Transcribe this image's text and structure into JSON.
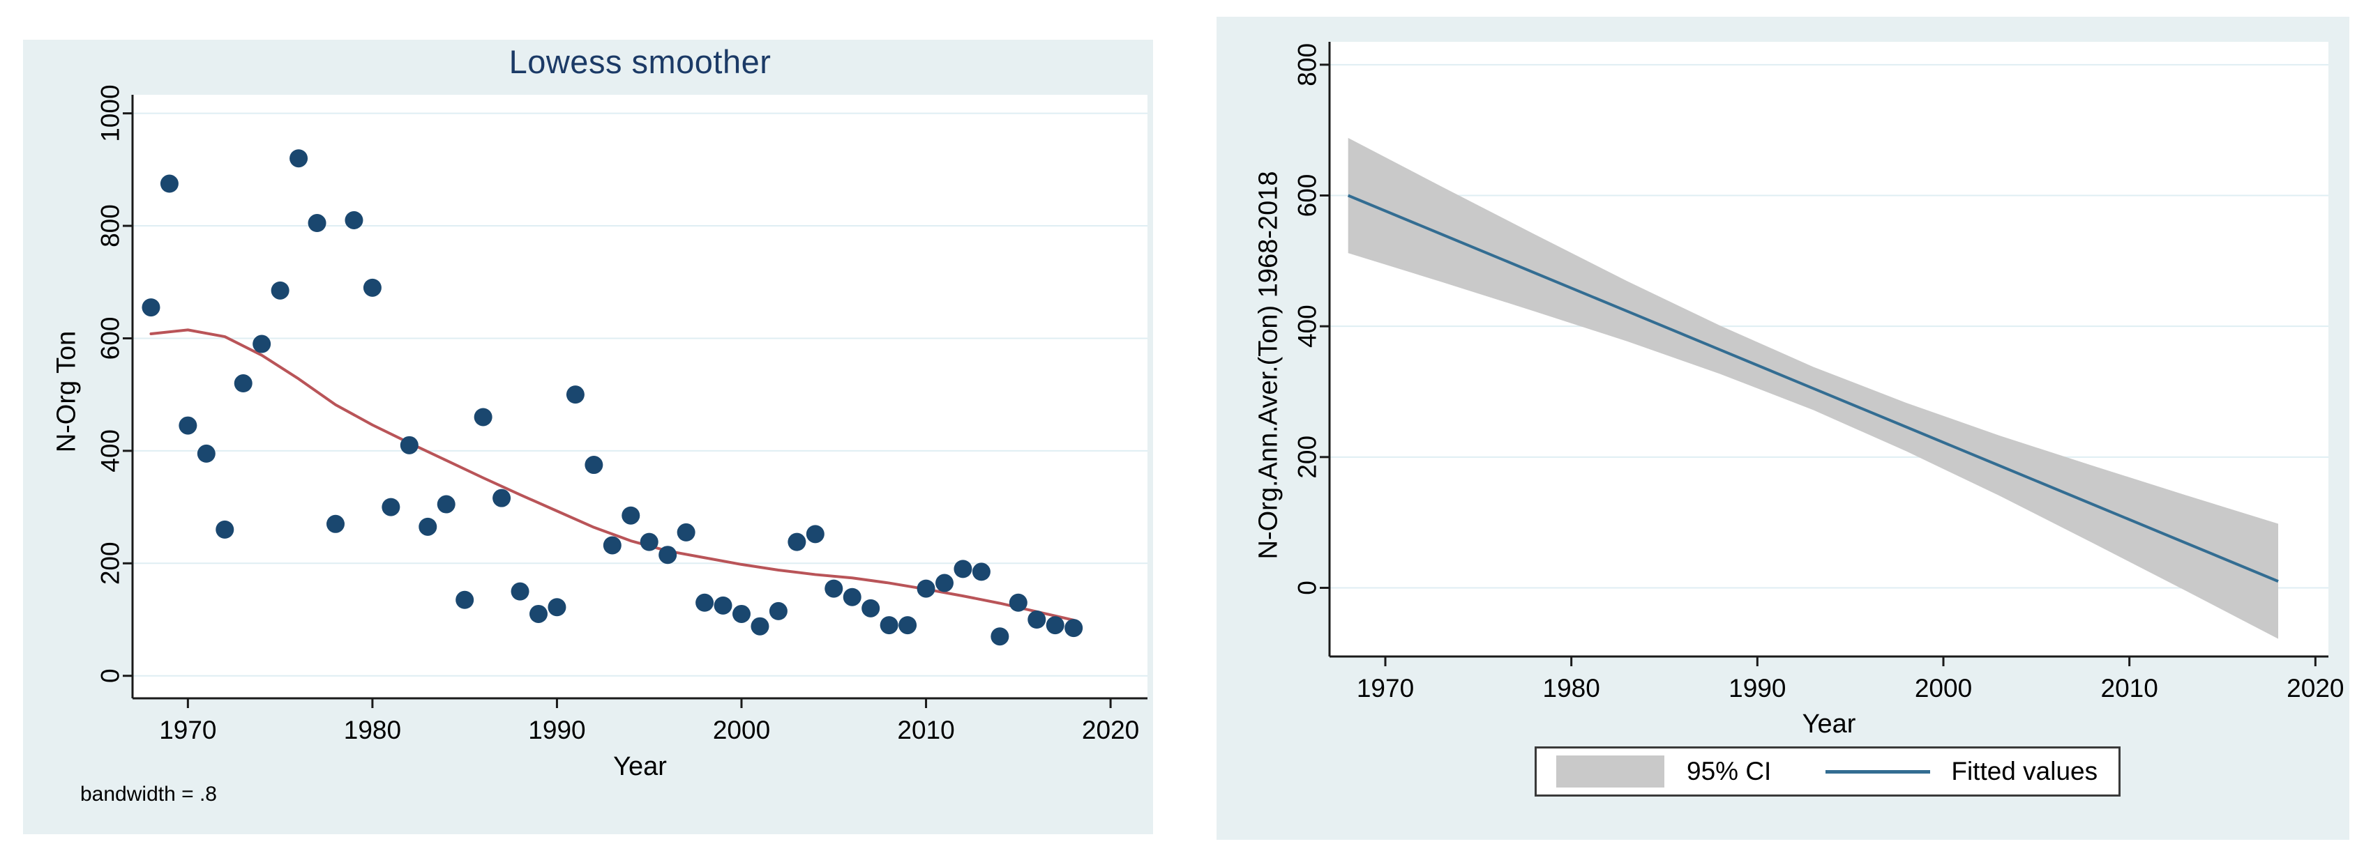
{
  "page": {
    "background": "#ffffff"
  },
  "chart_data": [
    {
      "type": "scatter",
      "title": "Lowess smoother",
      "xlabel": "Year",
      "ylabel": "N-Org Ton",
      "note": "bandwidth = .8",
      "x_ticks": [
        1970,
        1980,
        1990,
        2000,
        2010,
        2020
      ],
      "y_ticks": [
        0,
        200,
        400,
        600,
        800,
        1000
      ],
      "xlim": [
        1967.0,
        2022.0
      ],
      "ylim": [
        -40,
        1033
      ],
      "grid": true,
      "legend_position": "none",
      "points": [
        [
          1968,
          655
        ],
        [
          1969,
          875
        ],
        [
          1970,
          445
        ],
        [
          1971,
          395
        ],
        [
          1972,
          260
        ],
        [
          1973,
          520
        ],
        [
          1974,
          590
        ],
        [
          1975,
          685
        ],
        [
          1976,
          920
        ],
        [
          1977,
          805
        ],
        [
          1978,
          270
        ],
        [
          1979,
          810
        ],
        [
          1980,
          690
        ],
        [
          1981,
          300
        ],
        [
          1982,
          410
        ],
        [
          1983,
          265
        ],
        [
          1984,
          305
        ],
        [
          1985,
          135
        ],
        [
          1986,
          460
        ],
        [
          1987,
          316
        ],
        [
          1988,
          150
        ],
        [
          1989,
          110
        ],
        [
          1990,
          122
        ],
        [
          1991,
          500
        ],
        [
          1992,
          375
        ],
        [
          1993,
          232
        ],
        [
          1994,
          285
        ],
        [
          1995,
          238
        ],
        [
          1996,
          215
        ],
        [
          1997,
          255
        ],
        [
          1998,
          130
        ],
        [
          1999,
          125
        ],
        [
          2000,
          110
        ],
        [
          2001,
          88
        ],
        [
          2002,
          115
        ],
        [
          2003,
          238
        ],
        [
          2004,
          252
        ],
        [
          2005,
          155
        ],
        [
          2006,
          140
        ],
        [
          2007,
          120
        ],
        [
          2008,
          90
        ],
        [
          2009,
          90
        ],
        [
          2010,
          155
        ],
        [
          2011,
          165
        ],
        [
          2012,
          190
        ],
        [
          2013,
          185
        ],
        [
          2014,
          70
        ],
        [
          2015,
          130
        ],
        [
          2016,
          100
        ],
        [
          2017,
          90
        ],
        [
          2018,
          85
        ]
      ],
      "lowess": [
        [
          1968,
          608
        ],
        [
          1970,
          615
        ],
        [
          1972,
          603
        ],
        [
          1974,
          570
        ],
        [
          1976,
          528
        ],
        [
          1978,
          482
        ],
        [
          1980,
          446
        ],
        [
          1982,
          414
        ],
        [
          1984,
          383
        ],
        [
          1986,
          352
        ],
        [
          1988,
          322
        ],
        [
          1990,
          293
        ],
        [
          1992,
          264
        ],
        [
          1994,
          240
        ],
        [
          1996,
          222
        ],
        [
          1998,
          210
        ],
        [
          2000,
          198
        ],
        [
          2002,
          188
        ],
        [
          2004,
          180
        ],
        [
          2006,
          174
        ],
        [
          2008,
          165
        ],
        [
          2010,
          154
        ],
        [
          2012,
          142
        ],
        [
          2014,
          129
        ],
        [
          2016,
          114
        ],
        [
          2018,
          99
        ]
      ],
      "colors": {
        "card_bg": "#e7f0f2",
        "plot_bg": "#ffffff",
        "grid": "#dfeef3",
        "axis": "#1a1a1a",
        "text": "#000000",
        "point": "#1a476f",
        "line": "#b95458",
        "title": "#1b3a66"
      }
    },
    {
      "type": "line",
      "title": "",
      "xlabel": "Year",
      "ylabel": "N-Org.Ann.Aver.(Ton) 1968-2018",
      "x_ticks": [
        1970,
        1980,
        1990,
        2000,
        2010,
        2020
      ],
      "y_ticks": [
        0,
        200,
        400,
        600,
        800
      ],
      "xlim": [
        1967.0,
        2020.7
      ],
      "ylim": [
        -105,
        835
      ],
      "grid": true,
      "legend_position": "bottom-center",
      "x": [
        1968,
        1973,
        1978,
        1983,
        1988,
        1993,
        1998,
        2003,
        2008,
        2013,
        2018
      ],
      "fitted": [
        600,
        541,
        482,
        423,
        364,
        305,
        246,
        187,
        128,
        69,
        10
      ],
      "ci_upper": [
        688,
        614,
        541,
        469,
        401,
        338,
        283,
        233,
        187,
        142,
        98
      ],
      "ci_lower": [
        512,
        468,
        423,
        377,
        327,
        272,
        209,
        141,
        69,
        -4,
        -78
      ],
      "legend": [
        {
          "label": "95% CI",
          "swatch": "area"
        },
        {
          "label": "Fitted values",
          "swatch": "line"
        }
      ],
      "colors": {
        "card_bg": "#e7f0f2",
        "plot_bg": "#ffffff",
        "grid": "#dfeef3",
        "axis": "#1a1a1a",
        "text": "#000000",
        "ci": "#c9c9c9",
        "line": "#336d92"
      }
    }
  ]
}
